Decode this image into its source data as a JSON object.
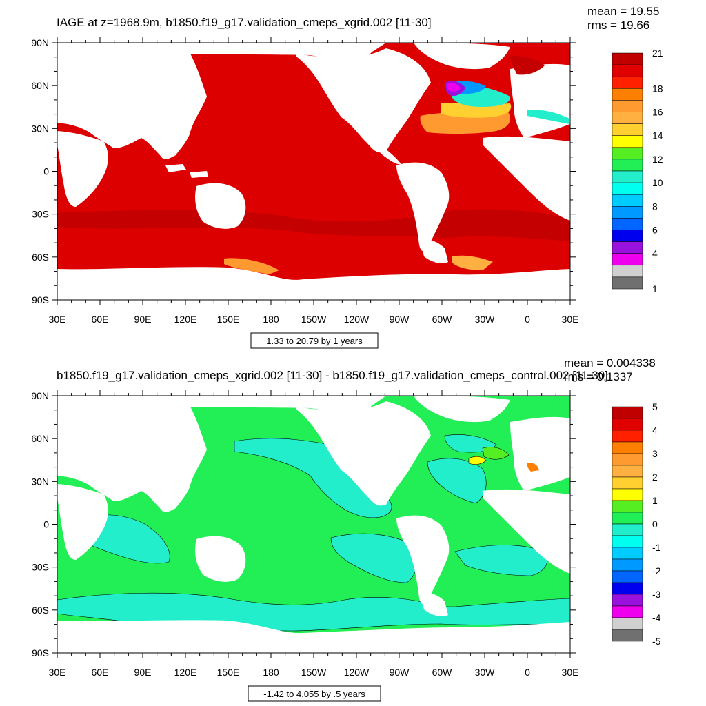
{
  "colors": {
    "top_ocean": "#dd0000",
    "top_band": "#c40000",
    "bottom_green": "#22ee55",
    "bottom_cyan": "#22eecc",
    "land": "#ffffff"
  },
  "top": {
    "title": "IAGE at z=1968.9m, b1850.f19_g17.validation_cmeps_xgrid.002 [11-30]",
    "mean": "mean = 19.55",
    "rms": "rms = 19.66",
    "range_note": "1.33 to 20.79 by 1 years",
    "colorbar": {
      "colors": [
        "#c00000",
        "#e00000",
        "#ff2000",
        "#ff8000",
        "#ff9a30",
        "#ffb040",
        "#ffd030",
        "#ffff00",
        "#55ee22",
        "#22ee55",
        "#22eecc",
        "#00ffee",
        "#00ccff",
        "#0099ff",
        "#0066ff",
        "#0000ee",
        "#9911dd",
        "#ee00ee",
        "#d0d0d0",
        "#707070"
      ],
      "labels": [
        "21",
        "18",
        "16",
        "14",
        "12",
        "10",
        "8",
        "6",
        "4",
        "1"
      ]
    }
  },
  "bottom": {
    "title": "b1850.f19_g17.validation_cmeps_xgrid.002 [11-30] - b1850.f19_g17.validation_cmeps_control.002 [11-30]",
    "mean": "mean = 0.004338",
    "rms": "rms = 0.1337",
    "range_note": "-1.42 to 4.055 by .5 years",
    "colorbar": {
      "colors": [
        "#c00000",
        "#e00000",
        "#ff2000",
        "#ff8000",
        "#ff9a30",
        "#ffb040",
        "#ffd030",
        "#ffff00",
        "#55ee22",
        "#22ee55",
        "#22eecc",
        "#00ffee",
        "#00ccff",
        "#0099ff",
        "#0066ff",
        "#0000ee",
        "#9911dd",
        "#ee00ee",
        "#d0d0d0",
        "#707070"
      ],
      "labels": [
        "5",
        "4",
        "3",
        "2",
        "1",
        "0",
        "-1",
        "-2",
        "-3",
        "-4",
        "-5"
      ]
    }
  },
  "axes": {
    "lat_labels": [
      "90N",
      "60N",
      "30N",
      "0",
      "30S",
      "60S",
      "90S"
    ],
    "lon_labels": [
      "30E",
      "60E",
      "90E",
      "120E",
      "150E",
      "180",
      "150W",
      "120W",
      "90W",
      "60W",
      "30W",
      "0",
      "30E"
    ]
  }
}
